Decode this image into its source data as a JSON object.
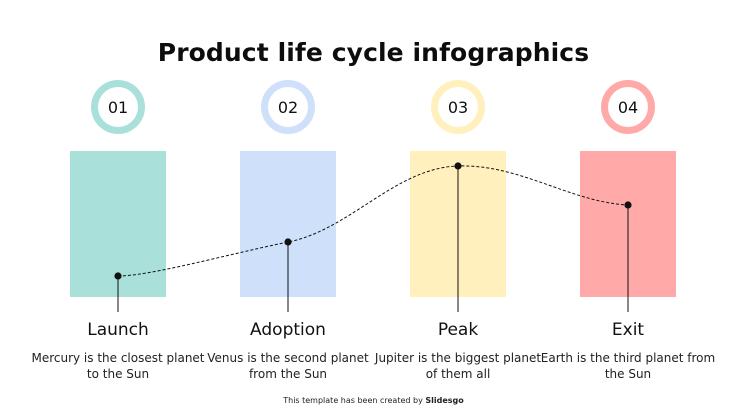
{
  "title": "Product life cycle infographics",
  "stages": [
    {
      "number": "01",
      "label": "Launch",
      "description": "Mercury is the closest planet to the Sun",
      "color": "#a9e1da",
      "ring_color": "#a9e1da"
    },
    {
      "number": "02",
      "label": "Adoption",
      "description": "Venus is the second planet from the Sun",
      "color": "#cfe0fb",
      "ring_color": "#cfe0fb"
    },
    {
      "number": "03",
      "label": "Peak",
      "description": "Jupiter is the biggest planet of them all",
      "color": "#fff0bd",
      "ring_color": "#fff0bd"
    },
    {
      "number": "04",
      "label": "Exit",
      "description": "Earth is the third planet from the Sun",
      "color": "#ffaaa8",
      "ring_color": "#ffaaa8"
    }
  ],
  "footer": {
    "prefix": "This template has been created by ",
    "brand": "Slidesgo"
  }
}
